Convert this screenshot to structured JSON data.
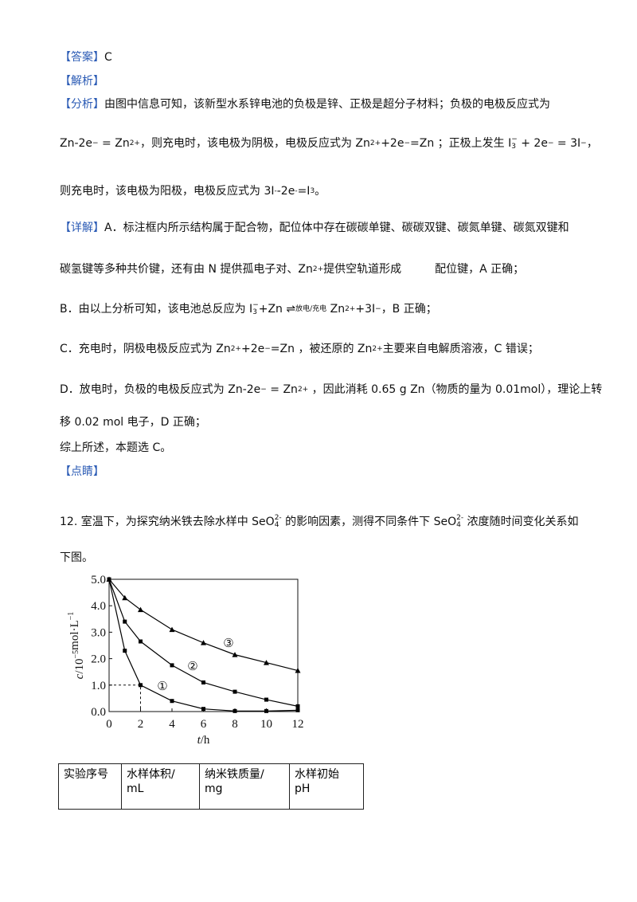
{
  "lines": [
    [
      {
        "text": "【答案】",
        "color": "#2b5bb5"
      },
      {
        "text": "C"
      }
    ],
    [
      {
        "text": "【解析】",
        "color": "#2b5bb5"
      }
    ],
    [
      {
        "text": "【分析】",
        "color": "#2b5bb5"
      },
      {
        "text": "由图中信息可知，该新型水系锌电池的负极是锌、正极是超分子材料；负极的电极反应式为"
      }
    ],
    [
      {
        "text": "Zn-2e",
        "sup": "−"
      },
      {
        "text": " = Zn",
        "sup": "2+"
      },
      {
        "text": "，则充电时，该电极为阴极，电极反应式为 Zn",
        "sup": "2+"
      },
      {
        "text": "+2e",
        "sup": "−"
      },
      {
        "text": "=Zn ；正极上发生 I",
        "sub": "3",
        "sup": "−"
      },
      {
        "text": " + 2e",
        "sup": "−"
      },
      {
        "text": " = 3I",
        "sup": "−"
      },
      {
        "text": "，"
      }
    ],
    [
      {
        "text": "则充电时，该电极为阳极，电极反应式为 3I",
        "sup": "-"
      },
      {
        "text": "-2e",
        "sup": "-"
      },
      {
        "text": "=I",
        "sub": "3"
      },
      {
        "text": "。"
      }
    ],
    [
      {
        "text": "【详解】",
        "color": "#2b5bb5"
      },
      {
        "text": "A．标注框内所示结构属于配合物，配位体中存在碳碳单键、碳碳双键、碳氮单键、碳氮双键和"
      }
    ],
    [
      {
        "text": "碳氢键等多种共价键，还有由 N 提供孤电子对、Zn",
        "sup": "2+"
      },
      {
        "text": "提供空轨道形成　　　配位键，A 正确；"
      }
    ],
    [
      {
        "text": "B．由以上分析可知，该电池总反应为 I",
        "sub": "3",
        "sup": "−"
      },
      {
        "text": "+Zn ⇌",
        "sup": "放电/充电"
      },
      {
        "text": " Zn",
        "sup": "2+"
      },
      {
        "text": "+3I",
        "sup": "−"
      },
      {
        "text": "，B 正确；"
      }
    ],
    [
      {
        "text": "C．充电时，阴极电极反应式为 Zn",
        "sup": "2+"
      },
      {
        "text": "+2e",
        "sup": "−"
      },
      {
        "text": "=Zn ，被还原的 Zn",
        "sup": "2+"
      },
      {
        "text": "主要来自电解质溶液，C 错误；"
      }
    ],
    [
      {
        "text": "D．放电时，负极的电极反应式为 Zn-2e",
        "sup": "−"
      },
      {
        "text": " = Zn",
        "sup": "2+"
      },
      {
        "text": " ，因此消耗 0.65 g Zn（物质的量为 0.01mol），理论上转"
      }
    ],
    [
      {
        "text": "移 0.02 mol 电子，D 正确；"
      }
    ],
    [
      {
        "text": "综上所述，本题选 C。"
      }
    ],
    [
      {
        "text": "【点睛】",
        "color": "#2b5bb5"
      }
    ],
    [
      {
        "text": "12. 室温下，为探究纳米铁去除水样中 SeO",
        "sub": "4",
        "sup": "2-"
      },
      {
        "text": " 的影响因素，测得不同条件下 SeO",
        "sub": "4",
        "sup": "2-"
      },
      {
        "text": " 浓度随时间变化关系如"
      }
    ],
    [
      {
        "text": "下图。"
      }
    ]
  ],
  "chart_data": {
    "type": "line",
    "x": [
      0,
      1,
      2,
      4,
      6,
      8,
      10,
      12
    ],
    "series": [
      {
        "name": "①",
        "color": "#000000",
        "marker": "square",
        "values": [
          5.0,
          2.3,
          1.0,
          0.4,
          0.1,
          0.02,
          0.02,
          0.05
        ]
      },
      {
        "name": "②",
        "color": "#000000",
        "marker": "square",
        "values": [
          5.0,
          3.4,
          2.65,
          1.75,
          1.1,
          0.75,
          0.45,
          0.2
        ]
      },
      {
        "name": "③",
        "color": "#000000",
        "marker": "triangle",
        "values": [
          5.0,
          4.3,
          3.85,
          3.1,
          2.6,
          2.15,
          1.85,
          1.55
        ]
      }
    ],
    "xlim": [
      0,
      12
    ],
    "xticks": [
      0,
      2,
      4,
      6,
      8,
      10,
      12
    ],
    "ylim": [
      0,
      5
    ],
    "yticks": [
      {
        "value": 0,
        "label": "0.0"
      },
      {
        "value": 1,
        "label": "1.0"
      },
      {
        "value": 2,
        "label": "2.0"
      },
      {
        "value": 3,
        "label": "3.0"
      },
      {
        "value": 4,
        "label": "4.0"
      },
      {
        "value": 5,
        "label": "5.0"
      }
    ],
    "x_label": [
      {
        "text": "t",
        "italic": true
      },
      {
        "text": "/h"
      }
    ],
    "y_label": [
      {
        "text": "c",
        "italic": true
      },
      {
        "text": "/10",
        "sup": "−5"
      },
      {
        "text": "mol·L",
        "sup": "−1"
      }
    ]
  },
  "table": {
    "header": [
      [
        "实验序号"
      ],
      [
        "水样体积/",
        "mL"
      ],
      [
        "纳米铁质量/",
        "mg"
      ],
      [
        "水样初始",
        "pH"
      ]
    ]
  }
}
